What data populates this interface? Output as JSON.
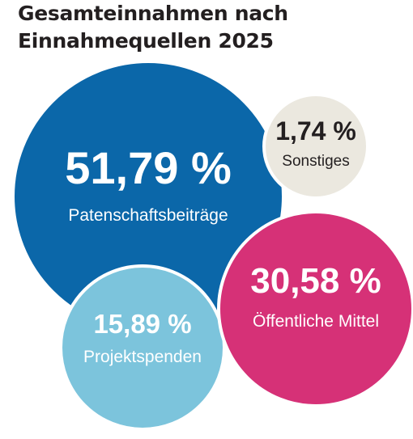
{
  "title_lines": [
    "Gesamteinnahmen nach",
    "Einnahmequellen 2025"
  ],
  "chart_data": {
    "type": "bubble",
    "title": "Gesamteinnahmen nach Einnahmequellen 2025",
    "unit": "%",
    "items": [
      {
        "label": "Patenschaftsbeiträge",
        "value_text": "51,79 %",
        "value": 51.79,
        "color": "#0b67a9"
      },
      {
        "label": "Öffentliche Mittel",
        "value_text": "30,58 %",
        "value": 30.58,
        "color": "#d63177"
      },
      {
        "label": "Projektspenden",
        "value_text": "15,89 %",
        "value": 15.89,
        "color": "#7cc4dc"
      },
      {
        "label": "Sonstiges",
        "value_text": "1,74 %",
        "value": 1.74,
        "color": "#ebe8df"
      }
    ]
  }
}
